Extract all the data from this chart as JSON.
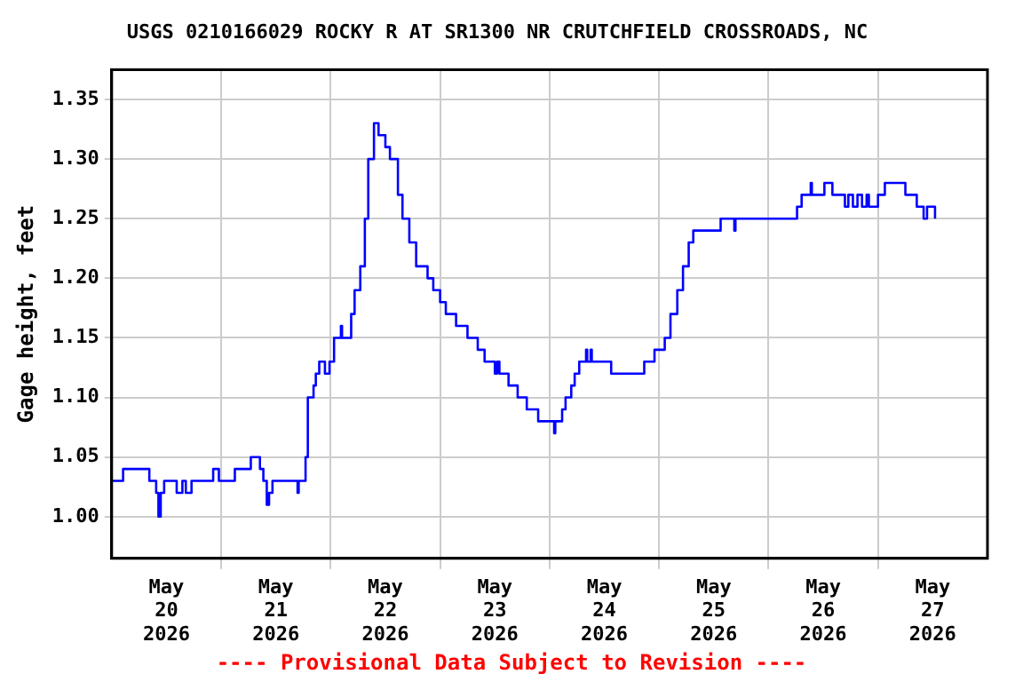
{
  "chart_data": {
    "type": "step",
    "title": "USGS 0210166029 ROCKY R AT SR1300 NR CRUTCHFIELD CROSSROADS, NC",
    "ylabel": "Gage height, feet",
    "annotations": [
      "---- Provisional Data Subject to Revision ----"
    ],
    "x": [
      "2026-05-20T00:00",
      "2026-05-20T02:30",
      "2026-05-20T08:15",
      "2026-05-20T09:45",
      "2026-05-20T10:15",
      "2026-05-20T10:45",
      "2026-05-20T11:30",
      "2026-05-20T14:15",
      "2026-05-20T15:30",
      "2026-05-20T16:15",
      "2026-05-20T17:30",
      "2026-05-20T22:15",
      "2026-05-20T23:30",
      "2026-05-21T03:00",
      "2026-05-21T06:30",
      "2026-05-21T08:30",
      "2026-05-21T09:15",
      "2026-05-21T10:00",
      "2026-05-21T10:30",
      "2026-05-21T11:15",
      "2026-05-21T16:45",
      "2026-05-21T17:00",
      "2026-05-21T18:30",
      "2026-05-21T19:00",
      "2026-05-21T20:15",
      "2026-05-21T20:45",
      "2026-05-21T21:30",
      "2026-05-21T22:45",
      "2026-05-21T23:45",
      "2026-05-22T00:45",
      "2026-05-22T02:15",
      "2026-05-22T02:30",
      "2026-05-22T04:30",
      "2026-05-22T05:15",
      "2026-05-22T06:30",
      "2026-05-22T07:30",
      "2026-05-22T08:15",
      "2026-05-22T09:30",
      "2026-05-22T10:30",
      "2026-05-22T12:00",
      "2026-05-22T13:00",
      "2026-05-22T14:45",
      "2026-05-22T15:45",
      "2026-05-22T17:15",
      "2026-05-22T18:45",
      "2026-05-22T21:15",
      "2026-05-22T22:30",
      "2026-05-23T00:00",
      "2026-05-23T01:15",
      "2026-05-23T03:30",
      "2026-05-23T06:00",
      "2026-05-23T08:15",
      "2026-05-23T09:45",
      "2026-05-23T12:00",
      "2026-05-23T12:30",
      "2026-05-23T13:00",
      "2026-05-23T15:00",
      "2026-05-23T17:00",
      "2026-05-23T19:00",
      "2026-05-23T21:30",
      "2026-05-24T01:00",
      "2026-05-24T01:15",
      "2026-05-24T02:45",
      "2026-05-24T03:30",
      "2026-05-24T04:45",
      "2026-05-24T05:30",
      "2026-05-24T06:30",
      "2026-05-24T08:00",
      "2026-05-24T08:15",
      "2026-05-24T09:00",
      "2026-05-24T09:15",
      "2026-05-24T13:30",
      "2026-05-24T20:45",
      "2026-05-24T23:00",
      "2026-05-25T01:15",
      "2026-05-25T02:30",
      "2026-05-25T04:00",
      "2026-05-25T05:15",
      "2026-05-25T06:30",
      "2026-05-25T07:30",
      "2026-05-25T13:30",
      "2026-05-25T16:30",
      "2026-05-25T16:45",
      "2026-05-26T06:15",
      "2026-05-26T07:15",
      "2026-05-26T09:15",
      "2026-05-26T09:30",
      "2026-05-26T12:15",
      "2026-05-26T14:00",
      "2026-05-26T16:45",
      "2026-05-26T17:30",
      "2026-05-26T18:30",
      "2026-05-26T19:30",
      "2026-05-26T20:30",
      "2026-05-26T21:30",
      "2026-05-26T22:00",
      "2026-05-27T00:00",
      "2026-05-27T01:30",
      "2026-05-27T06:00",
      "2026-05-27T08:30",
      "2026-05-27T10:00",
      "2026-05-27T10:45",
      "2026-05-27T12:30"
    ],
    "series": [
      {
        "color": "#0000ff",
        "values": [
          1.03,
          1.04,
          1.03,
          1.02,
          1.0,
          1.02,
          1.03,
          1.02,
          1.03,
          1.02,
          1.03,
          1.04,
          1.03,
          1.04,
          1.05,
          1.04,
          1.03,
          1.01,
          1.02,
          1.03,
          1.02,
          1.03,
          1.05,
          1.1,
          1.11,
          1.12,
          1.13,
          1.12,
          1.13,
          1.15,
          1.16,
          1.15,
          1.17,
          1.19,
          1.21,
          1.25,
          1.3,
          1.33,
          1.32,
          1.31,
          1.3,
          1.27,
          1.25,
          1.23,
          1.21,
          1.2,
          1.19,
          1.18,
          1.17,
          1.16,
          1.15,
          1.14,
          1.13,
          1.12,
          1.13,
          1.12,
          1.11,
          1.1,
          1.09,
          1.08,
          1.07,
          1.08,
          1.09,
          1.1,
          1.11,
          1.12,
          1.13,
          1.14,
          1.13,
          1.14,
          1.13,
          1.12,
          1.13,
          1.14,
          1.15,
          1.17,
          1.19,
          1.21,
          1.23,
          1.24,
          1.25,
          1.24,
          1.25,
          1.26,
          1.27,
          1.28,
          1.27,
          1.28,
          1.27,
          1.26,
          1.27,
          1.26,
          1.27,
          1.26,
          1.27,
          1.26,
          1.27,
          1.28,
          1.27,
          1.26,
          1.25,
          1.26,
          1.25
        ]
      }
    ],
    "xlim": [
      "2026-05-20T00:00",
      "2026-05-28T00:00"
    ],
    "xticks": [
      {
        "value": "2026-05-20T12:00",
        "label": "May 20 2026"
      },
      {
        "value": "2026-05-21T00:00",
        "label": null
      },
      {
        "value": "2026-05-21T12:00",
        "label": "May 21 2026"
      },
      {
        "value": "2026-05-22T00:00",
        "label": null
      },
      {
        "value": "2026-05-22T12:00",
        "label": "May 22 2026"
      },
      {
        "value": "2026-05-23T00:00",
        "label": null
      },
      {
        "value": "2026-05-23T12:00",
        "label": "May 23 2026"
      },
      {
        "value": "2026-05-24T00:00",
        "label": null
      },
      {
        "value": "2026-05-24T12:00",
        "label": "May 24 2026"
      },
      {
        "value": "2026-05-25T00:00",
        "label": null
      },
      {
        "value": "2026-05-25T12:00",
        "label": "May 25 2026"
      },
      {
        "value": "2026-05-26T00:00",
        "label": null
      },
      {
        "value": "2026-05-26T12:00",
        "label": "May 26 2026"
      },
      {
        "value": "2026-05-27T00:00",
        "label": null
      },
      {
        "value": "2026-05-27T12:00",
        "label": "May 27 2026"
      }
    ],
    "ylim": [
      0.965,
      1.375
    ],
    "yticks": [
      {
        "value": 1.0,
        "label": "1.00"
      },
      {
        "value": 1.05,
        "label": "1.05"
      },
      {
        "value": 1.1,
        "label": "1.10"
      },
      {
        "value": 1.15,
        "label": "1.15"
      },
      {
        "value": 1.2,
        "label": "1.20"
      },
      {
        "value": 1.25,
        "label": "1.25"
      },
      {
        "value": 1.3,
        "label": "1.30"
      },
      {
        "value": 1.35,
        "label": "1.35"
      }
    ],
    "grid": true,
    "legend": false,
    "marker": "none",
    "line_style": "solid"
  }
}
